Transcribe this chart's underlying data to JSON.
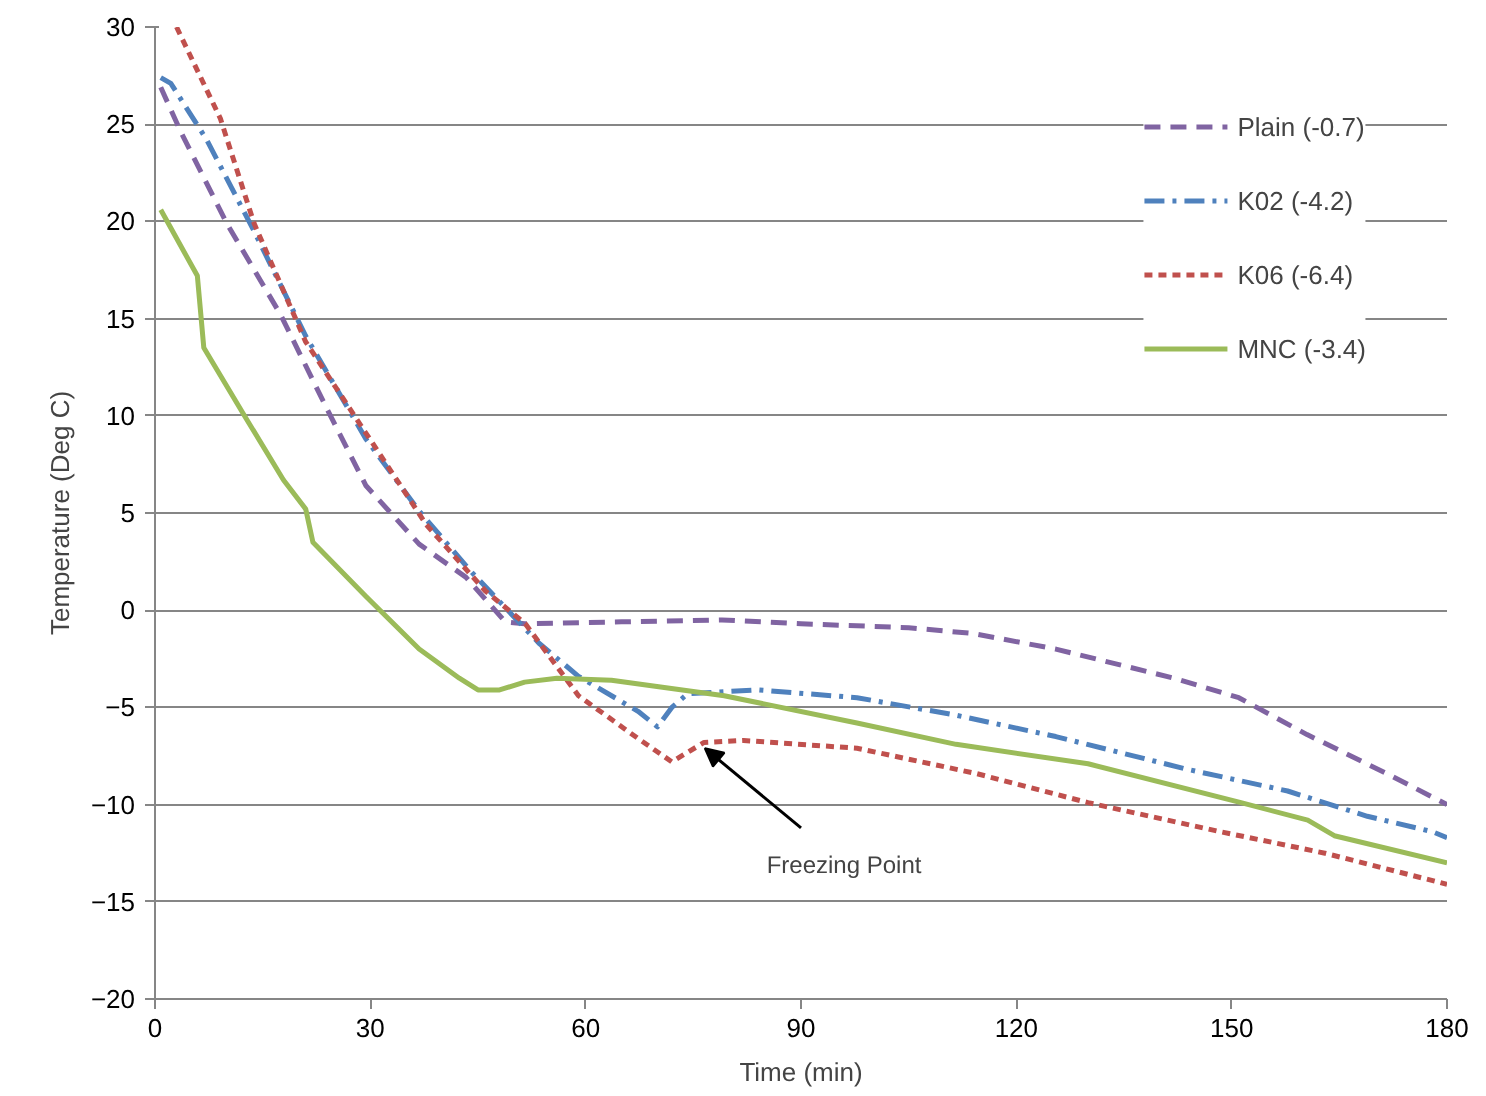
{
  "chart_data": {
    "type": "line",
    "xlabel": "Time (min)",
    "ylabel": "Temperature (Deg C)",
    "xlim": [
      0,
      180
    ],
    "ylim": [
      -20,
      30
    ],
    "xticks": [
      0,
      30,
      60,
      90,
      120,
      150,
      180
    ],
    "yticks": [
      -20,
      -15,
      -10,
      -5,
      0,
      5,
      10,
      15,
      20,
      25,
      30
    ],
    "grid": "y",
    "legend": "top right",
    "marker": "none",
    "annotations": [
      {
        "text": "Freezing Point",
        "x": 76,
        "y": -6.8
      }
    ],
    "series": [
      {
        "name": "Plain (-0.7)",
        "color": "#8064a2",
        "line_style": "dashed",
        "x": [
          0.8,
          3.6,
          10,
          17.5,
          23.9,
          29.4,
          36.8,
          43.3,
          48.8,
          51.5,
          65,
          79,
          90,
          105,
          114,
          125.5,
          142,
          151,
          160.5,
          171.6,
          180
        ],
        "values": [
          26.9,
          24.6,
          19.9,
          15.2,
          10.4,
          6.4,
          3.4,
          1.7,
          -0.6,
          -0.7,
          -0.6,
          -0.5,
          -0.7,
          -0.9,
          -1.2,
          -2.0,
          -3.5,
          -4.5,
          -6.4,
          -8.4,
          -10.0
        ]
      },
      {
        "name": "K02 (-4.2)",
        "color": "#4f81bd",
        "line_style": "dashdot",
        "x": [
          0.8,
          2.2,
          7.2,
          13.8,
          21,
          29.4,
          36.8,
          44,
          53.5,
          59,
          67.3,
          70,
          72,
          74.2,
          84,
          97.8,
          111.6,
          125.5,
          144,
          157.8,
          168.9,
          178,
          180
        ],
        "values": [
          27.4,
          27.1,
          24.2,
          19.5,
          14.1,
          8.8,
          5.1,
          2.0,
          -1.7,
          -3.4,
          -5.2,
          -6.0,
          -5.0,
          -4.3,
          -4.1,
          -4.5,
          -5.4,
          -6.5,
          -8.2,
          -9.3,
          -10.6,
          -11.4,
          -11.7
        ]
      },
      {
        "name": "K06 (-6.4)",
        "color": "#c0504d",
        "line_style": "dotted",
        "x": [
          3,
          9.1,
          13.8,
          21,
          29.4,
          37.8,
          46,
          51.6,
          59,
          67.3,
          72,
          76.5,
          82,
          97.8,
          114.4,
          130,
          148.5,
          163,
          180
        ],
        "values": [
          30,
          25.3,
          19.9,
          13.8,
          9.1,
          4.4,
          1.0,
          -0.7,
          -4.4,
          -6.6,
          -7.8,
          -6.8,
          -6.7,
          -7.1,
          -8.4,
          -9.9,
          -11.4,
          -12.5,
          -14.1
        ]
      },
      {
        "name": "MNC (-3.4)",
        "color": "#9bbb59",
        "line_style": "solid",
        "x": [
          0.8,
          5.9,
          6.8,
          12.8,
          17.9,
          21,
          22,
          29.4,
          36.8,
          42.4,
          45,
          48,
          51.5,
          56,
          63.6,
          79.3,
          97.8,
          111.6,
          130,
          151.3,
          160.6,
          164.3,
          180
        ],
        "values": [
          20.6,
          17.2,
          13.5,
          9.8,
          6.7,
          5.2,
          3.5,
          0.7,
          -2.0,
          -3.5,
          -4.1,
          -4.1,
          -3.7,
          -3.5,
          -3.6,
          -4.4,
          -5.8,
          -6.9,
          -7.9,
          -9.9,
          -10.8,
          -11.6,
          -13.0
        ]
      }
    ]
  }
}
